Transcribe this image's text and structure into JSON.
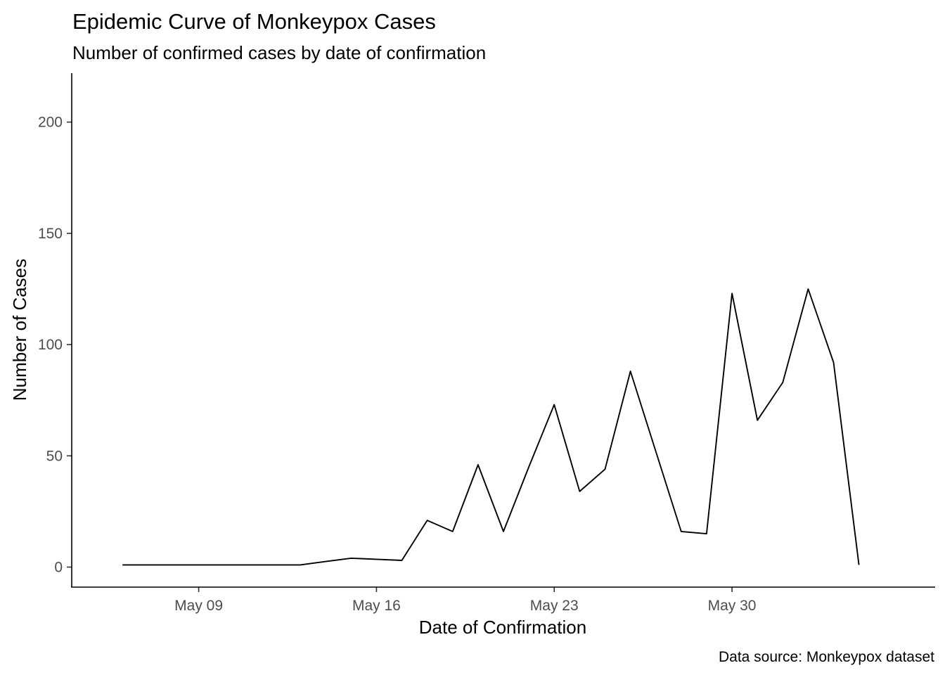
{
  "chart_data": {
    "type": "line",
    "title": "Epidemic Curve of Monkeypox Cases",
    "subtitle": "Number of confirmed cases by date of confirmation",
    "xlabel": "Date of Confirmation",
    "ylabel": "Number of Cases",
    "caption": "Data source: Monkeypox dataset",
    "x_tick_labels": [
      "May 09",
      "May 16",
      "May 23",
      "May 30"
    ],
    "x_ticks": [
      "2022-05-09",
      "2022-05-16",
      "2022-05-23",
      "2022-05-30"
    ],
    "y_ticks": [
      0,
      50,
      100,
      150,
      200
    ],
    "xlim": [
      "2022-05-04",
      "2022-06-07"
    ],
    "ylim": [
      -9,
      222
    ],
    "grid": false,
    "legend": "none",
    "series": [
      {
        "color": "#000000",
        "points": [
          {
            "x": "2022-05-06",
            "y": 1
          },
          {
            "x": "2022-05-07",
            "y": 1
          },
          {
            "x": "2022-05-08",
            "y": 1
          },
          {
            "x": "2022-05-09",
            "y": 1
          },
          {
            "x": "2022-05-10",
            "y": 1
          },
          {
            "x": "2022-05-11",
            "y": 1
          },
          {
            "x": "2022-05-12",
            "y": 1
          },
          {
            "x": "2022-05-13",
            "y": 1
          },
          {
            "x": "2022-05-14",
            "y": 2.5
          },
          {
            "x": "2022-05-15",
            "y": 4
          },
          {
            "x": "2022-05-16",
            "y": 3.5
          },
          {
            "x": "2022-05-17",
            "y": 3
          },
          {
            "x": "2022-05-18",
            "y": 21
          },
          {
            "x": "2022-05-19",
            "y": 16
          },
          {
            "x": "2022-05-20",
            "y": 46
          },
          {
            "x": "2022-05-21",
            "y": 16
          },
          {
            "x": "2022-05-22",
            "y": 45
          },
          {
            "x": "2022-05-23",
            "y": 73
          },
          {
            "x": "2022-05-24",
            "y": 34
          },
          {
            "x": "2022-05-25",
            "y": 44
          },
          {
            "x": "2022-05-26",
            "y": 88
          },
          {
            "x": "2022-05-27",
            "y": 52
          },
          {
            "x": "2022-05-28",
            "y": 16
          },
          {
            "x": "2022-05-29",
            "y": 15
          },
          {
            "x": "2022-05-30",
            "y": 123
          },
          {
            "x": "2022-05-31",
            "y": 66
          },
          {
            "x": "2022-06-01",
            "y": 83
          },
          {
            "x": "2022-06-02",
            "y": 125
          },
          {
            "x": "2022-06-03",
            "y": 92
          },
          {
            "x": "2022-06-04",
            "y": 1
          }
        ]
      }
    ]
  }
}
